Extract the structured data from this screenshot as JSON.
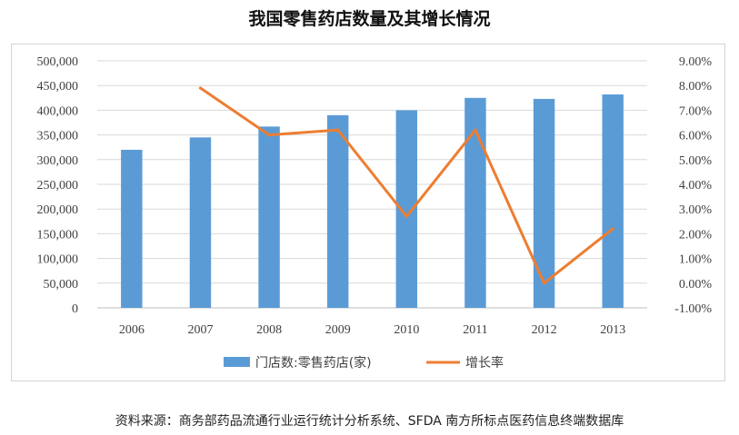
{
  "chart_data": {
    "type": "bar",
    "title": "我国零售药店数量及其增长情况",
    "categories": [
      "2006",
      "2007",
      "2008",
      "2009",
      "2010",
      "2011",
      "2012",
      "2013"
    ],
    "series": [
      {
        "name": "门店数:零售药店(家)",
        "type": "bar",
        "axis": "left",
        "color": "#5b9bd5",
        "values": [
          320000,
          345000,
          367000,
          390000,
          400000,
          425000,
          423000,
          432000
        ]
      },
      {
        "name": "增长率",
        "type": "line",
        "axis": "right",
        "color": "#ed7d31",
        "values": [
          null,
          7.9,
          6.0,
          6.2,
          2.7,
          6.2,
          0.0,
          2.2
        ]
      }
    ],
    "y_left": {
      "min": 0,
      "max": 500000,
      "step": 50000,
      "tick_labels": [
        "0",
        "50,000",
        "100,000",
        "150,000",
        "200,000",
        "250,000",
        "300,000",
        "350,000",
        "400,000",
        "450,000",
        "500,000"
      ]
    },
    "y_right": {
      "min": -1,
      "max": 9,
      "step": 1,
      "tick_labels": [
        "-1.00%",
        "0.00%",
        "1.00%",
        "2.00%",
        "3.00%",
        "4.00%",
        "5.00%",
        "6.00%",
        "7.00%",
        "8.00%",
        "9.00%"
      ]
    },
    "grid": true,
    "legend_position": "bottom"
  },
  "source_text": "资料来源：商务部药品流通行业运行统计分析系统、SFDA 南方所标点医药信息终端数据库"
}
